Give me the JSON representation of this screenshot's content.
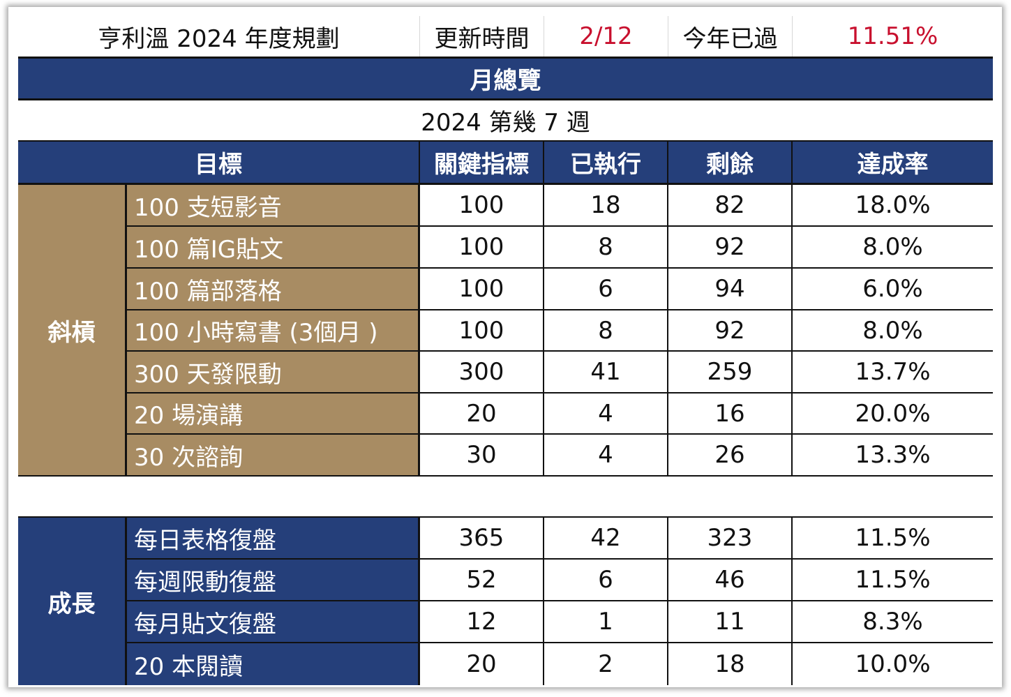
{
  "header": {
    "title": "亨利溫 2024 年度規劃",
    "update_label": "更新時間",
    "update_value": "2/12",
    "year_passed_label": "今年已過",
    "year_passed_value": "11.51%"
  },
  "month_overview": "月總覽",
  "week_label": "2024 第幾 7 週",
  "columns": {
    "goal": "目標",
    "key_metric": "關鍵指標",
    "executed": "已執行",
    "remaining": "剩餘",
    "completion_rate": "達成率"
  },
  "groups": [
    {
      "category": "斜槓",
      "color": "#a88c63",
      "rows": [
        {
          "item": "100 支短影音",
          "key": "100",
          "done": "18",
          "rest": "82",
          "rate": "18.0%"
        },
        {
          "item": "100 篇IG貼文",
          "key": "100",
          "done": "8",
          "rest": "92",
          "rate": "8.0%"
        },
        {
          "item": "100 篇部落格",
          "key": "100",
          "done": "6",
          "rest": "94",
          "rate": "6.0%"
        },
        {
          "item": "100 小時寫書 (3個月 )",
          "key": "100",
          "done": "8",
          "rest": "92",
          "rate": "8.0%"
        },
        {
          "item": "300 天發限動",
          "key": "300",
          "done": "41",
          "rest": "259",
          "rate": "13.7%"
        },
        {
          "item": "20 場演講",
          "key": "20",
          "done": "4",
          "rest": "16",
          "rate": "20.0%"
        },
        {
          "item": "30 次諮詢",
          "key": "30",
          "done": "4",
          "rest": "26",
          "rate": "13.3%"
        }
      ]
    },
    {
      "category": "成長",
      "color": "#253f7a",
      "rows": [
        {
          "item": "每日表格復盤",
          "key": "365",
          "done": "42",
          "rest": "323",
          "rate": "11.5%"
        },
        {
          "item": "每週限動復盤",
          "key": "52",
          "done": "6",
          "rest": "46",
          "rate": "11.5%"
        },
        {
          "item": "每月貼文復盤",
          "key": "12",
          "done": "1",
          "rest": "11",
          "rate": "8.3%"
        },
        {
          "item": "20 本閱讀",
          "key": "20",
          "done": "2",
          "rest": "18",
          "rate": "10.0%"
        }
      ]
    }
  ]
}
